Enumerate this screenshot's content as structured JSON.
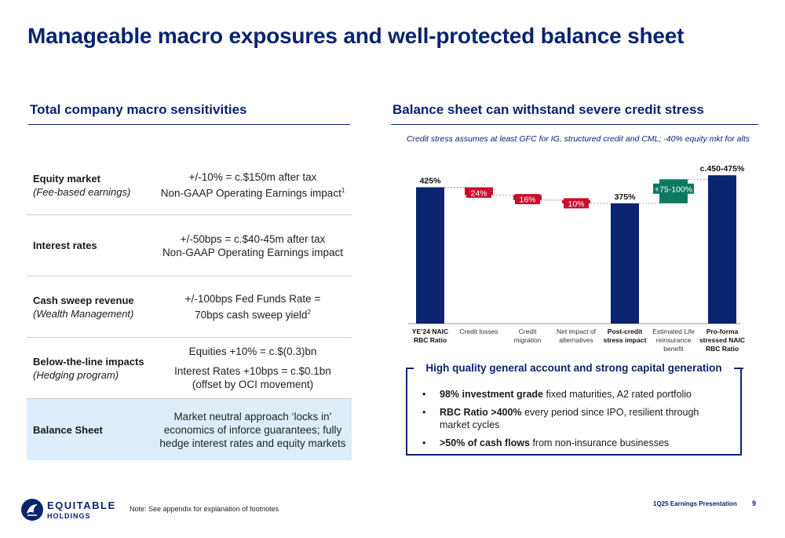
{
  "title": "Manageable macro exposures and well-protected balance sheet",
  "left": {
    "heading": "Total company macro sensitivities",
    "rows": [
      {
        "label": "Equity market",
        "sublabel": "(Fee-based earnings)",
        "value_lines": [
          "+/-10% = c.$150m after tax",
          "Non-GAAP Operating Earnings impact"
        ],
        "footnote": "1"
      },
      {
        "label": "Interest rates",
        "sublabel": "",
        "value_lines": [
          "+/-50bps = c.$40-45m after tax",
          "Non-GAAP Operating Earnings impact"
        ],
        "footnote": ""
      },
      {
        "label": "Cash sweep revenue",
        "sublabel": "(Wealth Management)",
        "value_lines": [
          "+/-100bps Fed Funds Rate =",
          "70bps cash sweep yield"
        ],
        "footnote": "2"
      },
      {
        "label": "Below-the-line impacts",
        "sublabel": "(Hedging program)",
        "value_lines": [
          "Equities +10% = c.$(0.3)bn"
        ],
        "value_lines_2": [
          "Interest Rates +10bps = c.$0.1bn",
          "(offset by OCI movement)"
        ],
        "footnote": ""
      },
      {
        "label": "Balance Sheet",
        "sublabel": "",
        "value_lines": [
          "Market neutral approach ‘locks in’",
          "economics of inforce guarantees; fully",
          "hedge interest rates and equity markets"
        ],
        "footnote": ""
      }
    ]
  },
  "right": {
    "heading": "Balance sheet can withstand severe credit stress",
    "note": "Credit stress assumes at least GFC for IG, structured credit and CML; -40% equity mkt for alts"
  },
  "chart_data": {
    "type": "bar",
    "subtype": "waterfall",
    "categories": [
      {
        "lines": [
          "YE’24 NAIC",
          "RBC Ratio"
        ],
        "bold": true
      },
      {
        "lines": [
          "Credit losses"
        ],
        "bold": false
      },
      {
        "lines": [
          "Credit",
          "migration"
        ],
        "bold": false
      },
      {
        "lines": [
          "Net impact of",
          "alternatives"
        ],
        "bold": false
      },
      {
        "lines": [
          "Post-credit",
          "stress impact"
        ],
        "bold": true
      },
      {
        "lines": [
          "Estimated Life",
          "reinsurance",
          "benefit"
        ],
        "bold": false
      },
      {
        "lines": [
          "Pro-forma",
          "stressed NAIC",
          "RBC Ratio"
        ],
        "bold": true
      }
    ],
    "bars": [
      {
        "kind": "total",
        "start": 0,
        "end": 425,
        "label": "425%"
      },
      {
        "kind": "decrease",
        "start": 425,
        "end": 401,
        "label": "24%"
      },
      {
        "kind": "decrease",
        "start": 401,
        "end": 385,
        "label": "16%"
      },
      {
        "kind": "decrease",
        "start": 385,
        "end": 375,
        "label": "10%"
      },
      {
        "kind": "total",
        "start": 0,
        "end": 375,
        "label": "375%"
      },
      {
        "kind": "increase",
        "start": 375,
        "end": 450,
        "label": "+75-100%"
      },
      {
        "kind": "total",
        "start": 0,
        "end": 462.5,
        "label": "c.450-475%"
      }
    ],
    "colors": {
      "total": "#0b2470",
      "decrease": "#c8102e",
      "increase": "#0b7a5e"
    },
    "ylim": [
      0,
      480
    ]
  },
  "quality": {
    "title": "High quality general account and strong capital generation",
    "bullets": [
      {
        "bold": "98% investment grade",
        "rest": " fixed maturities, A2 rated portfolio"
      },
      {
        "bold": "RBC Ratio >400%",
        "rest": " every period since IPO, resilient through market cycles"
      },
      {
        "bold": ">50% of cash flows",
        "rest": " from non-insurance businesses"
      }
    ],
    "bullet_char": "•"
  },
  "footer": {
    "logo_word": "EQUITABLE",
    "logo_sub": "HOLDINGS",
    "note": "Note: See appendix for explanation of footnotes",
    "presentation": "1Q25 Earnings Presentation",
    "page": "9"
  }
}
